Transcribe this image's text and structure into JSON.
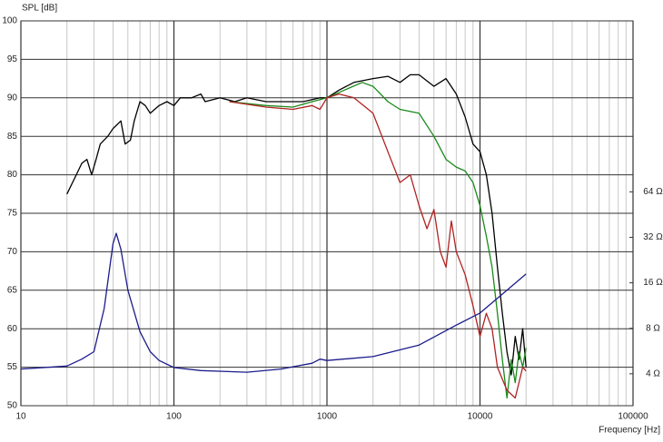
{
  "chart_data": {
    "type": "line",
    "y_label": "SPL [dB]",
    "x_label": "Frequency [Hz]",
    "xscale": "log",
    "xlim": [
      10,
      100000
    ],
    "xticks": [
      10,
      100,
      1000,
      10000,
      100000
    ],
    "ylim": [
      50,
      100
    ],
    "yticks": [
      50,
      55,
      60,
      65,
      70,
      75,
      80,
      85,
      90,
      95,
      100
    ],
    "y2scale": "log",
    "y2lim": [
      2.46,
      866
    ],
    "y2ticks": [
      {
        "value": 4,
        "label": "4 Ω"
      },
      {
        "value": 8,
        "label": "8 Ω"
      },
      {
        "value": 16,
        "label": "16 Ω"
      },
      {
        "value": 32,
        "label": "32 Ω"
      },
      {
        "value": 64,
        "label": "64 Ω"
      }
    ],
    "grid": true,
    "series": [
      {
        "color": "#000000",
        "x": [
          20,
          23,
          25,
          27,
          29,
          31,
          33,
          37,
          40,
          45,
          48,
          52,
          55,
          60,
          65,
          70,
          80,
          90,
          100,
          110,
          130,
          150,
          160,
          200,
          250,
          300,
          400,
          500,
          700,
          900,
          1000,
          1200,
          1500,
          2000,
          2500,
          3000,
          3500,
          4000,
          5000,
          6000,
          7000,
          8000,
          9000,
          10000,
          11000,
          12000,
          13000,
          14000,
          15000,
          16000,
          17000,
          18000,
          19000,
          20000
        ],
        "values": [
          77.5,
          80,
          81.5,
          82,
          80,
          82,
          84,
          85,
          86,
          87,
          84,
          84.5,
          87,
          89.5,
          89,
          88,
          89,
          89.5,
          89,
          90,
          90,
          90.5,
          89.5,
          90,
          89.5,
          90,
          89.5,
          89.5,
          89.5,
          90,
          90,
          91,
          92,
          92.5,
          92.8,
          92,
          93,
          93,
          91.5,
          92.5,
          90.5,
          87.5,
          84,
          83,
          80,
          75,
          68,
          62,
          57,
          54,
          59,
          56,
          60,
          55
        ]
      },
      {
        "color": "#1a8a1a",
        "x": [
          230,
          400,
          600,
          800,
          1000,
          1300,
          1700,
          2000,
          2500,
          3000,
          4000,
          5000,
          6000,
          7000,
          8000,
          9000,
          10000,
          11000,
          12000,
          13000,
          14000,
          15000,
          16000,
          17000,
          18000,
          19000,
          20000
        ],
        "values": [
          89.5,
          89,
          88.8,
          89.5,
          90,
          91,
          92,
          91.5,
          89.5,
          88.5,
          88,
          85,
          82,
          81,
          80.5,
          79,
          76,
          72,
          68,
          62,
          56,
          51,
          56,
          53,
          57,
          55,
          57.5
        ]
      },
      {
        "color": "#b22222",
        "x": [
          230,
          400,
          600,
          800,
          900,
          1000,
          1200,
          1500,
          2000,
          2500,
          3000,
          3500,
          4000,
          4500,
          5000,
          5500,
          6000,
          6500,
          7000,
          8000,
          9000,
          10000,
          11000,
          12000,
          13000,
          15000,
          17000,
          19000,
          20000
        ],
        "values": [
          89.5,
          88.8,
          88.5,
          89,
          88.5,
          90,
          90.5,
          90,
          88,
          83,
          79,
          80,
          76,
          73,
          75.5,
          70,
          68,
          74,
          70,
          67,
          63,
          59,
          62,
          60,
          55,
          52,
          51,
          55,
          54.5
        ]
      },
      {
        "color": "#1c1c8c",
        "axis": "y2",
        "x": [
          10,
          20,
          25,
          30,
          35,
          40,
          42,
          45,
          50,
          60,
          70,
          80,
          100,
          150,
          300,
          500,
          800,
          900,
          1000,
          2000,
          4000,
          7000,
          10000,
          15000,
          20000
        ],
        "values": [
          4.3,
          4.5,
          5.0,
          5.6,
          10.8,
          29,
          34,
          26.7,
          14.3,
          7.6,
          5.6,
          4.9,
          4.4,
          4.2,
          4.1,
          4.3,
          4.7,
          5.0,
          4.9,
          5.2,
          6.2,
          8.4,
          10.1,
          14.3,
          18.3
        ]
      }
    ]
  }
}
